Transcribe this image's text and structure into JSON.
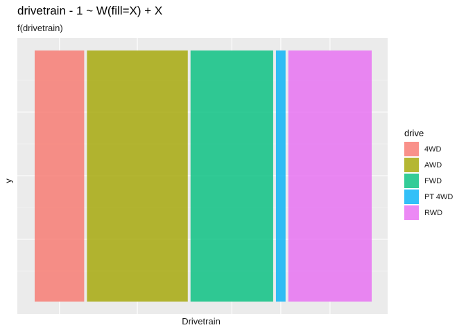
{
  "chart_data": {
    "type": "bar",
    "title": "drivetrain - 1 ~ W(fill=X) + X",
    "subtitle": "f(drivetrain)",
    "xlabel": "Drivetrain",
    "ylabel": "y",
    "stacked_proportional_width": true,
    "series": [
      {
        "name": "4WD",
        "width": 0.139,
        "color": "#F8766D"
      },
      {
        "name": "AWD",
        "width": 0.283,
        "color": "#A3A500"
      },
      {
        "name": "FWD",
        "width": 0.232,
        "color": "#00BF7D"
      },
      {
        "name": "PT 4WD",
        "width": 0.027,
        "color": "#00B0F6"
      },
      {
        "name": "RWD",
        "width": 0.234,
        "color": "#E76BF3"
      }
    ],
    "legend": {
      "title": "drive",
      "position": "right"
    },
    "grid": true
  }
}
